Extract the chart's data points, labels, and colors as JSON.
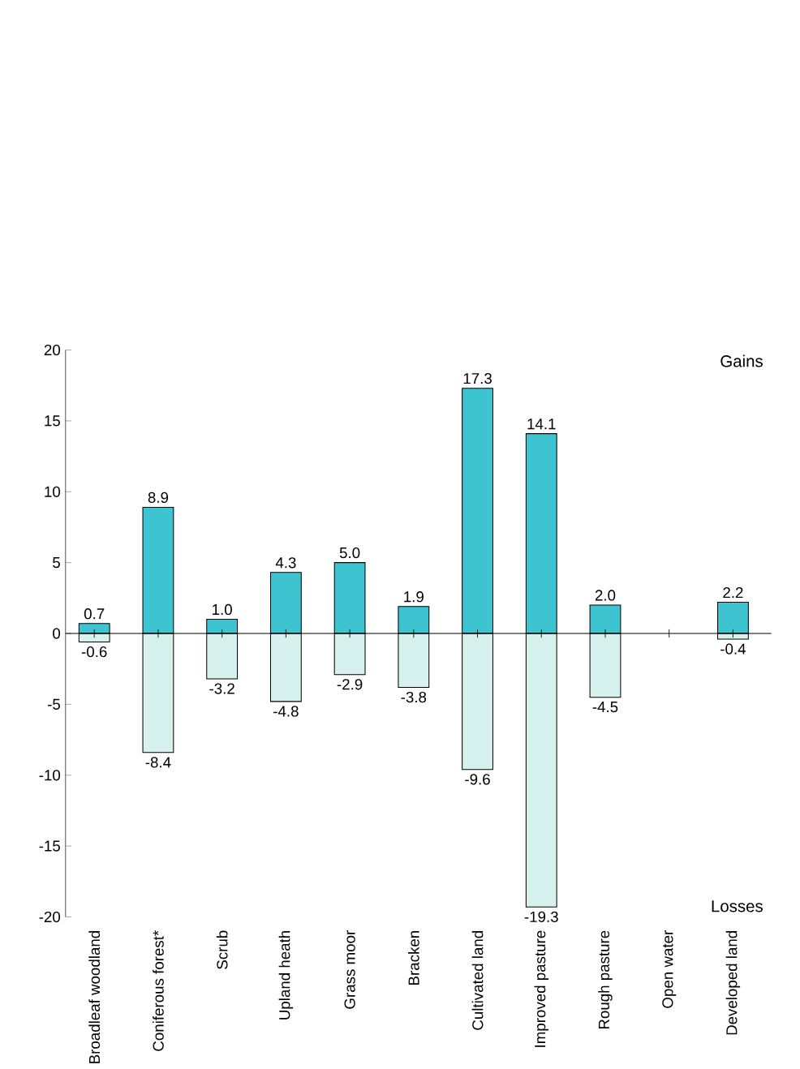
{
  "chart_data": {
    "type": "bar",
    "stacked": true,
    "categories": [
      "Broadleaf woodland",
      "Coniferous forest*",
      "Scrub",
      "Upland heath",
      "Grass moor",
      "Bracken",
      "Cultivated land",
      "Improved pasture",
      "Rough pasture",
      "Open water",
      "Developed land"
    ],
    "series": [
      {
        "color": "#3ec3d0",
        "values": [
          0.7,
          8.9,
          1.0,
          4.3,
          5.0,
          1.9,
          17.3,
          14.1,
          2.0,
          null,
          2.2
        ],
        "value_labels": [
          "0.7",
          "8.9",
          "1.0",
          "4.3",
          "5.0",
          "1.9",
          "17.3",
          "14.1",
          "2.0",
          null,
          "2.2"
        ]
      },
      {
        "color": "#d6f1ee",
        "values": [
          -0.6,
          -8.4,
          -3.2,
          -4.8,
          -2.9,
          -3.8,
          -9.6,
          -19.3,
          -4.5,
          null,
          -0.4
        ],
        "value_labels": [
          "-0.6",
          "-8.4",
          "-3.2",
          "-4.8",
          "-2.9",
          "-3.8",
          "-9.6",
          "-19.3",
          "-4.5",
          null,
          "-0.4"
        ]
      }
    ],
    "annotations": [
      "Gains",
      "Losses"
    ],
    "ylim": [
      -20,
      20
    ],
    "yticks": [
      -20,
      -15,
      -10,
      -5,
      0,
      5,
      10,
      15,
      20
    ]
  }
}
